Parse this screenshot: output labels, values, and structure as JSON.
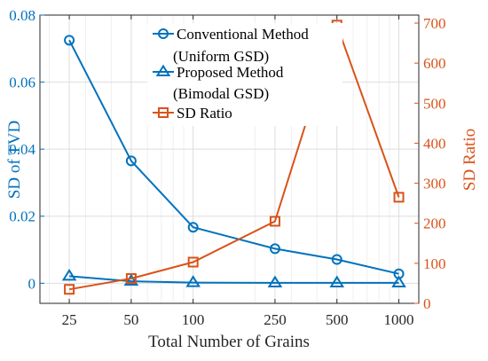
{
  "chart_data": {
    "type": "line",
    "x": [
      25,
      50,
      100,
      250,
      500,
      1000
    ],
    "x_scale": "log",
    "xlim": [
      18,
      1250
    ],
    "x_ticks": [
      25,
      50,
      100,
      250,
      500,
      1000
    ],
    "x_tick_labels": [
      "25",
      "50",
      "100",
      "250",
      "500",
      "1000"
    ],
    "xlabel": "Total Number of Grains",
    "ylabel_left": "SD of TVD",
    "ylabel_right": "SD Ratio",
    "ylim_left": [
      -0.006,
      0.08
    ],
    "ylim_right": [
      0,
      720
    ],
    "y_left_ticks": [
      0,
      0.02,
      0.04,
      0.06,
      0.08
    ],
    "y_left_tick_labels": [
      "0",
      "0.02",
      "0.04",
      "0.06",
      "0.08"
    ],
    "y_right_ticks": [
      0,
      100,
      200,
      300,
      400,
      500,
      600,
      700
    ],
    "y_right_tick_labels": [
      "0",
      "100",
      "200",
      "300",
      "400",
      "500",
      "600",
      "700"
    ],
    "grid": true,
    "legend_position": "top-center",
    "colors": {
      "blue": "#0072BD",
      "orange": "#D95319"
    },
    "series": [
      {
        "name": "Conventional Method",
        "name_line2": "(Uniform GSD)",
        "axis": "left",
        "marker": "circle",
        "color": "#0072BD",
        "values": [
          0.0725,
          0.0365,
          0.0167,
          0.0103,
          0.0071,
          0.0028
        ]
      },
      {
        "name": "Proposed Method",
        "name_line2": "(Bimodal GSD)",
        "axis": "left",
        "marker": "triangle",
        "color": "#0072BD",
        "values": [
          0.0021,
          0.0006,
          0.0002,
          0.0001,
          0.0001,
          0.0001
        ]
      },
      {
        "name": "SD Ratio",
        "name_line2": "",
        "axis": "right",
        "marker": "square",
        "color": "#D95319",
        "values": [
          35,
          62,
          103,
          205,
          695,
          265
        ]
      }
    ]
  }
}
